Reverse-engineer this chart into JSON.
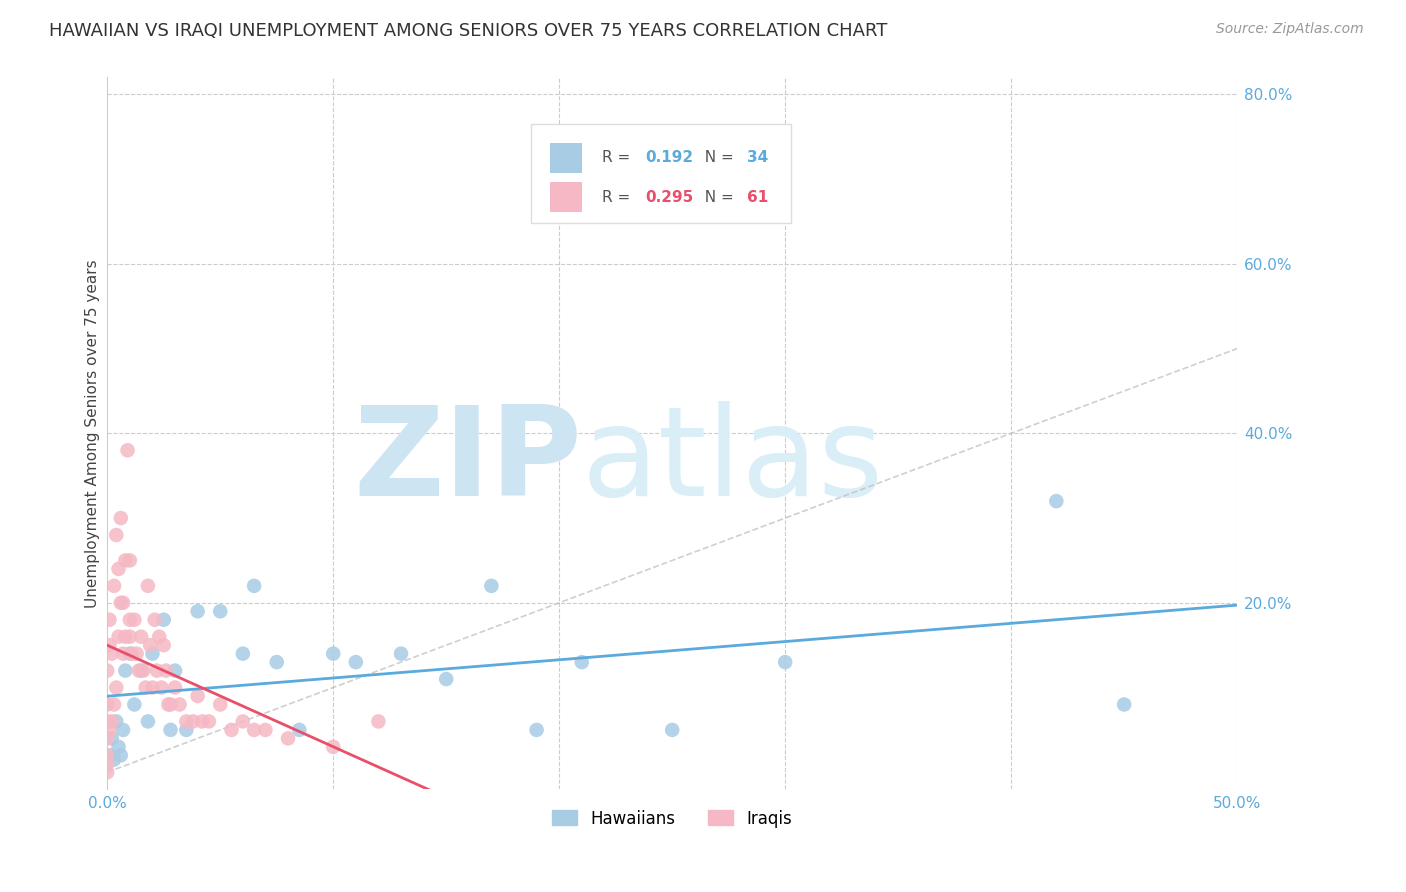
{
  "title": "HAWAIIAN VS IRAQI UNEMPLOYMENT AMONG SENIORS OVER 75 YEARS CORRELATION CHART",
  "source": "Source: ZipAtlas.com",
  "ylabel": "Unemployment Among Seniors over 75 years",
  "watermark_zip": "ZIP",
  "watermark_atlas": "atlas",
  "xlim": [
    0.0,
    0.5
  ],
  "ylim": [
    -0.02,
    0.82
  ],
  "xticks": [
    0.0,
    0.1,
    0.2,
    0.3,
    0.4,
    0.5
  ],
  "xtick_labels": [
    "0.0%",
    "",
    "",
    "",
    "",
    "50.0%"
  ],
  "yticks_right": [
    0.2,
    0.4,
    0.6,
    0.8
  ],
  "hawaiian_color": "#a8cce4",
  "iraqi_color": "#f5b8c4",
  "hawaiian_line_color": "#5aaadd",
  "iraqi_line_color": "#e8506a",
  "R_hawaiian": 0.192,
  "N_hawaiian": 34,
  "R_iraqi": 0.295,
  "N_iraqi": 61,
  "hawaiian_x": [
    0.001,
    0.002,
    0.003,
    0.004,
    0.005,
    0.006,
    0.007,
    0.008,
    0.01,
    0.012,
    0.015,
    0.018,
    0.02,
    0.025,
    0.028,
    0.03,
    0.035,
    0.04,
    0.05,
    0.06,
    0.065,
    0.075,
    0.085,
    0.1,
    0.11,
    0.13,
    0.15,
    0.17,
    0.19,
    0.21,
    0.25,
    0.3,
    0.42,
    0.45
  ],
  "hawaiian_y": [
    0.02,
    0.04,
    0.015,
    0.06,
    0.03,
    0.02,
    0.05,
    0.12,
    0.14,
    0.08,
    0.12,
    0.06,
    0.14,
    0.18,
    0.05,
    0.12,
    0.05,
    0.19,
    0.19,
    0.14,
    0.22,
    0.13,
    0.05,
    0.14,
    0.13,
    0.14,
    0.11,
    0.22,
    0.05,
    0.13,
    0.05,
    0.13,
    0.32,
    0.08
  ],
  "iraqi_x": [
    0.0,
    0.0,
    0.0,
    0.0,
    0.0,
    0.0,
    0.0,
    0.001,
    0.001,
    0.001,
    0.002,
    0.002,
    0.003,
    0.003,
    0.004,
    0.004,
    0.005,
    0.005,
    0.006,
    0.006,
    0.007,
    0.007,
    0.008,
    0.008,
    0.009,
    0.01,
    0.01,
    0.01,
    0.011,
    0.012,
    0.013,
    0.014,
    0.015,
    0.016,
    0.017,
    0.018,
    0.019,
    0.02,
    0.021,
    0.022,
    0.023,
    0.024,
    0.025,
    0.026,
    0.027,
    0.028,
    0.03,
    0.032,
    0.035,
    0.038,
    0.04,
    0.042,
    0.045,
    0.05,
    0.055,
    0.06,
    0.065,
    0.07,
    0.08,
    0.1,
    0.12
  ],
  "iraqi_y": [
    0.0,
    0.01,
    0.02,
    0.04,
    0.06,
    0.08,
    0.12,
    0.05,
    0.15,
    0.18,
    0.06,
    0.14,
    0.08,
    0.22,
    0.1,
    0.28,
    0.16,
    0.24,
    0.3,
    0.2,
    0.14,
    0.2,
    0.25,
    0.16,
    0.38,
    0.16,
    0.18,
    0.25,
    0.14,
    0.18,
    0.14,
    0.12,
    0.16,
    0.12,
    0.1,
    0.22,
    0.15,
    0.1,
    0.18,
    0.12,
    0.16,
    0.1,
    0.15,
    0.12,
    0.08,
    0.08,
    0.1,
    0.08,
    0.06,
    0.06,
    0.09,
    0.06,
    0.06,
    0.08,
    0.05,
    0.06,
    0.05,
    0.05,
    0.04,
    0.03,
    0.06
  ],
  "grid_color": "#cccccc",
  "background_color": "#ffffff",
  "title_fontsize": 13,
  "label_fontsize": 11,
  "tick_fontsize": 11,
  "watermark_color": "#cde4f2",
  "watermark_fontsize_zip": 90,
  "watermark_fontsize_atlas": 90,
  "source_fontsize": 10
}
